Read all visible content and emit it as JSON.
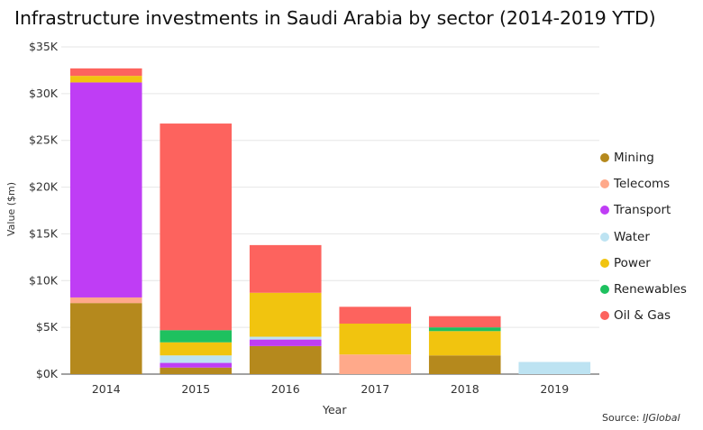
{
  "chart_data": {
    "type": "bar",
    "stacked": true,
    "title": "Infrastructure investments in Saudi Arabia by sector (2014-2019 YTD)",
    "xlabel": "Year",
    "ylabel": "Value ($m)",
    "ylim": [
      0,
      35000
    ],
    "yticks": [
      "$0K",
      "$5K",
      "$10K",
      "$15K",
      "$20K",
      "$25K",
      "$30K",
      "$35K"
    ],
    "categories": [
      "2014",
      "2015",
      "2016",
      "2017",
      "2018",
      "2019"
    ],
    "grid": true,
    "legend_position": "right",
    "series": [
      {
        "name": "Mining",
        "color": "#b5891d",
        "values": [
          7600,
          700,
          3000,
          0,
          2000,
          0
        ]
      },
      {
        "name": "Telecoms",
        "color": "#ffa98a",
        "values": [
          600,
          0,
          0,
          2100,
          0,
          0
        ]
      },
      {
        "name": "Transport",
        "color": "#bf3df5",
        "values": [
          23000,
          500,
          700,
          0,
          0,
          0
        ]
      },
      {
        "name": "Water",
        "color": "#bde3f2",
        "values": [
          0,
          800,
          300,
          0,
          0,
          1300
        ]
      },
      {
        "name": "Power",
        "color": "#f1c40f",
        "values": [
          700,
          1400,
          4700,
          3300,
          2600,
          0
        ]
      },
      {
        "name": "Renewables",
        "color": "#1ec15f",
        "values": [
          0,
          1300,
          0,
          0,
          400,
          0
        ]
      },
      {
        "name": "Oil & Gas",
        "color": "#fd635e",
        "values": [
          800,
          22100,
          5100,
          1800,
          1200,
          0
        ]
      }
    ]
  },
  "source_label": "Source: ",
  "source_name": "IJGlobal"
}
